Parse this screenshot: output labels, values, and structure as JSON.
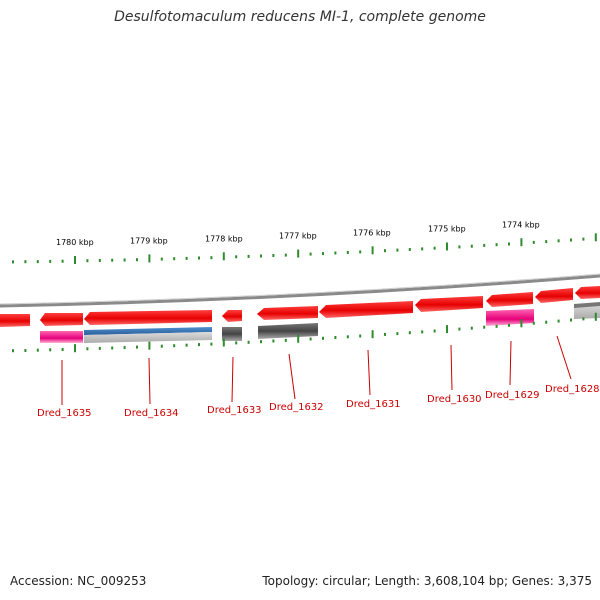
{
  "title": "Desulfotomaculum reducens MI-1, complete genome",
  "footer": {
    "accession": "Accession: NC_009253",
    "stats": "Topology: circular; Length: 3,608,104 bp; Genes: 3,375"
  },
  "colors": {
    "cds_forward": "#ff1a1a",
    "cds_reverse_track": "#555555",
    "rna_pink": "#ff3399",
    "blue_feature": "#3a78b8",
    "tick_green": "#2e8b2e",
    "backbone_gray": "#888888",
    "label_red": "#cc0000"
  },
  "scale_labels": [
    "1780 kbp",
    "1779 kbp",
    "1778 kbp",
    "1777 kbp",
    "1776 kbp",
    "1775 kbp",
    "1774 kbp"
  ],
  "gene_labels": [
    "Dred_1635",
    "Dred_1634",
    "Dred_1633",
    "Dred_1632",
    "Dred_1631",
    "Dred_1630",
    "Dred_1629",
    "Dred_1628"
  ]
}
